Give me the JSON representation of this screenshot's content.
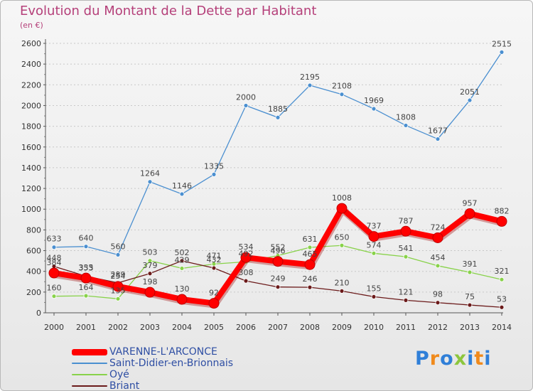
{
  "header": {
    "title": "Evolution du Montant de la Dette par Habitant",
    "subtitle": "(en €)"
  },
  "logo": {
    "text": "Proxiti"
  },
  "colors": {
    "title": "#b5407a",
    "legend_text": "#2e4ea3",
    "grid": "#cccccc"
  },
  "chart_data": {
    "type": "line",
    "title": "Evolution du Montant de la Dette par Habitant",
    "subtitle": "(en €)",
    "xlabel": "",
    "ylabel": "",
    "x": [
      "2000",
      "2001",
      "2002",
      "2003",
      "2004",
      "2005",
      "2006",
      "2007",
      "2008",
      "2009",
      "2010",
      "2011",
      "2012",
      "2013",
      "2014"
    ],
    "y_ticks": [
      0,
      200,
      400,
      600,
      800,
      1000,
      1200,
      1400,
      1600,
      1800,
      2000,
      2200,
      2400,
      2600
    ],
    "ylim": [
      0,
      2600
    ],
    "grid": "horizontal dashed",
    "legend_position": "bottom-left",
    "series": [
      {
        "name": "VARENNE-L'ARCONCE",
        "color": "#ff0000",
        "values": [
          384,
          335,
          254,
          198,
          130,
          92,
          534,
          496,
          465,
          1008,
          737,
          787,
          724,
          957,
          882
        ],
        "labels": [
          "384",
          "335",
          "254",
          "198",
          "130",
          "92",
          "534",
          "496",
          "465",
          "1008",
          "737",
          "787",
          "724",
          "957",
          "882"
        ]
      },
      {
        "name": "Saint-Didier-en-Brionnais",
        "color": "#4a8fd0",
        "values": [
          633,
          640,
          560,
          1264,
          1146,
          1335,
          2000,
          1885,
          2195,
          2108,
          1969,
          1808,
          1677,
          2051,
          2515
        ],
        "labels": [
          "633",
          "640",
          "560",
          "1264",
          "1146",
          "1335",
          "2000",
          "1885",
          "2195",
          "2108",
          "1969",
          "1808",
          "1677",
          "2051",
          "2515"
        ]
      },
      {
        "name": "Oyé",
        "color": "#88d24a",
        "values": [
          160,
          164,
          135,
          503,
          429,
          471,
          492,
          552,
          631,
          650,
          574,
          541,
          454,
          391,
          321
        ],
        "labels": [
          "160",
          "164",
          "135",
          "503",
          "429",
          "471",
          "492",
          "552",
          "631",
          "650",
          "574",
          "541",
          "454",
          "391",
          "321"
        ]
      },
      {
        "name": "Briant",
        "color": "#6b1a1a",
        "values": [
          448,
          353,
          289,
          379,
          502,
          432,
          308,
          249,
          246,
          210,
          155,
          121,
          98,
          75,
          53
        ],
        "labels": [
          "448",
          "353",
          "289",
          "379",
          "502",
          "432",
          "308",
          "249",
          "246",
          "210",
          "155",
          "121",
          "98",
          "75",
          "53"
        ]
      }
    ]
  }
}
